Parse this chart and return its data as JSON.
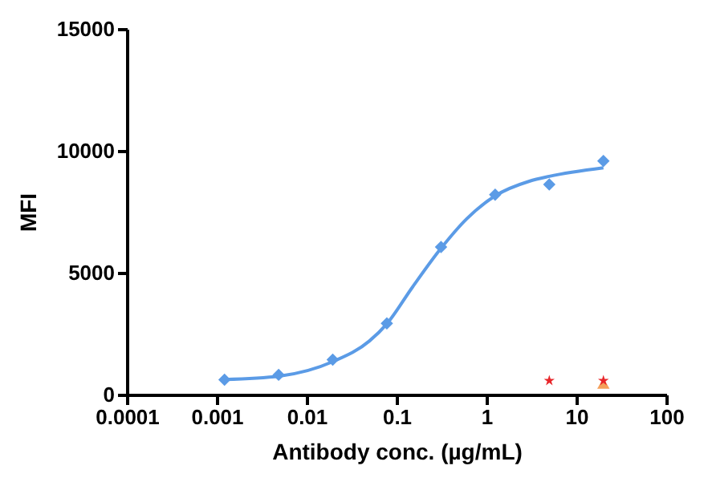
{
  "chart_data": {
    "type": "scatter",
    "xlabel": "Antibody conc. (µg/mL)",
    "ylabel": "MFI",
    "log": "x",
    "xlim": [
      0.0001,
      100
    ],
    "ylim": [
      0,
      15000
    ],
    "xticks": [
      0.0001,
      0.001,
      0.01,
      0.1,
      1,
      10,
      100
    ],
    "yticks": [
      0,
      5000,
      10000,
      15000
    ],
    "grid": false,
    "series": [
      {
        "type": "line",
        "color": "#5b9be6",
        "marker": "none",
        "line_style": "solid",
        "x": [
          0.00122,
          0.005,
          0.0195,
          0.05,
          0.078,
          0.15,
          0.3125,
          0.6,
          1.25,
          3,
          5,
          20
        ],
        "values": [
          620,
          760,
          1350,
          2200,
          2900,
          4400,
          6000,
          7200,
          8150,
          8750,
          8950,
          9300
        ]
      },
      {
        "color": "#5b9be6",
        "marker": "diamond",
        "x": [
          0.00122,
          0.00488,
          0.0195,
          0.078,
          0.3125,
          1.25,
          5,
          20
        ],
        "values": [
          610,
          810,
          1430,
          2920,
          6050,
          8200,
          8620,
          9580
        ]
      },
      {
        "color": "#f5a05a",
        "marker": "triangle",
        "x": [
          20
        ],
        "values": [
          460
        ]
      },
      {
        "color": "#e8262a",
        "marker": "star",
        "x": [
          5,
          20
        ],
        "values": [
          570,
          570
        ]
      }
    ]
  }
}
